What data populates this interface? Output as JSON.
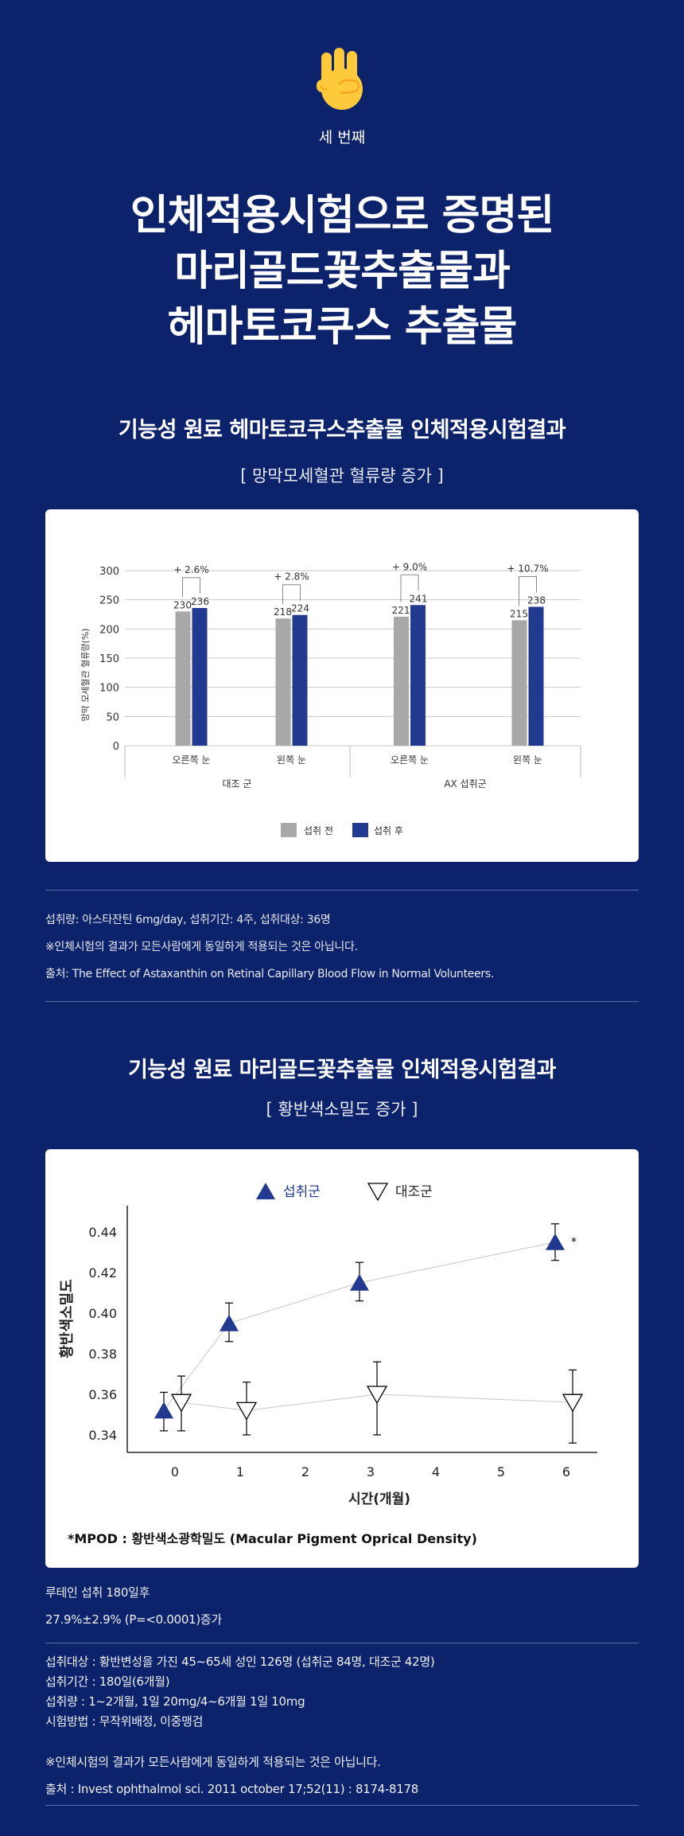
{
  "header": {
    "icon": "three-fingers-hand-icon",
    "step_label": "세 번째",
    "title_lines": [
      "인체적용시험으로 증명된",
      "마리골드꽃추출물과",
      "헤마토코쿠스 추출물"
    ]
  },
  "section1": {
    "heading": "기능성 원료 헤마토코쿠스추출물 인체적용시험결과",
    "subheading": "[ 망막모세혈관 혈류량 증가 ]",
    "notes": [
      "섭취량: 아스타잔틴 6mg/day, 섭취기간: 4주, 섭취대상: 36명",
      "※인체시험의 결과가 모든사람에게 동일하게 적용되는 것은 아닙니다.",
      "출처: The Effect of Astaxanthin on Retinal Capillary Blood Flow in Normal Volunteers."
    ]
  },
  "section2": {
    "heading": "기능성 원료 마리골드꽃추출물 인체적용시험결과",
    "subheading": "[ 황반색소밀도 증가 ]",
    "result_lines": [
      "루테인 섭취 180일후",
      "27.9%±2.9% (P=<0.0001)증가"
    ],
    "details": [
      "섭취대상 : 황반변성을 가진 45~65세 성인 126명 (섭취군 84명, 대조군 42명)",
      "섭취기간 : 180일(6개월)",
      "섭취량 : 1~2개월, 1일 20mg/4~6개월 1일 10mg",
      "시험방법 : 무작위배정, 이중맹검"
    ],
    "disclaimer": "※인체시험의 결과가 모든사람에게 동일하게 적용되는 것은 아닙니다.",
    "source": "출처 : Invest ophthalmol sci. 2011 october 17;52(11) : 8174-8178"
  },
  "colors": {
    "background": "#0c226b",
    "accent": "#213a8f",
    "gray": "#a8a8a8",
    "hand": "#ffc93c"
  },
  "chart_data": [
    {
      "type": "bar",
      "ylabel": "망막 모세혈관 혈류량(%)",
      "ylim": [
        0,
        300
      ],
      "yticks": [
        0,
        50,
        100,
        150,
        200,
        250,
        300
      ],
      "grid": true,
      "categories": [
        "오른쪽 눈",
        "왼쪽 눈",
        "오른쪽 눈",
        "왼쪽 눈"
      ],
      "groups": [
        {
          "label": "대조 군",
          "span": 2
        },
        {
          "label": "AX 섭취군",
          "span": 2
        }
      ],
      "series": [
        {
          "name": "섭취 전",
          "color": "#a8a8a8",
          "values": [
            230,
            218,
            221,
            215
          ]
        },
        {
          "name": "섭취 후",
          "color": "#213a8f",
          "values": [
            236,
            224,
            241,
            238
          ]
        }
      ],
      "change_labels": [
        "+ 2.6%",
        "+ 2.8%",
        "+ 9.0%",
        "+ 10.7%"
      ],
      "legend": "bottom-center"
    },
    {
      "type": "scatter",
      "xlabel": "시간(개월)",
      "ylabel": "황반색소밀도",
      "xlim": [
        0,
        6
      ],
      "xticks": [
        0,
        1,
        2,
        3,
        4,
        5,
        6
      ],
      "ylim": [
        0.335,
        0.45
      ],
      "yticks": [
        "0.34",
        "0.36",
        "0.38",
        "0.40",
        "0.42",
        "0.44"
      ],
      "legend": "top-center",
      "series": [
        {
          "name": "섭취군",
          "marker": "filled-up-triangle",
          "color": "#213a8f",
          "x": [
            0,
            1,
            3,
            6
          ],
          "y": [
            0.352,
            0.395,
            0.415,
            0.435
          ],
          "err_low": [
            0.342,
            0.386,
            0.406,
            0.426
          ],
          "err_high": [
            0.361,
            0.405,
            0.425,
            0.444
          ],
          "annotations": [
            "",
            "",
            "",
            "*"
          ]
        },
        {
          "name": "대조군",
          "marker": "open-down-triangle",
          "color": "#000000",
          "x": [
            0,
            1,
            3,
            6
          ],
          "y": [
            0.356,
            0.352,
            0.36,
            0.356
          ],
          "err_low": [
            0.342,
            0.34,
            0.34,
            0.336
          ],
          "err_high": [
            0.369,
            0.366,
            0.376,
            0.372
          ],
          "annotations": [
            "",
            "",
            "",
            ""
          ]
        }
      ],
      "footnote": "*MPOD : 황반색소광학밀도 (Macular Pigment Oprical Density)"
    }
  ]
}
